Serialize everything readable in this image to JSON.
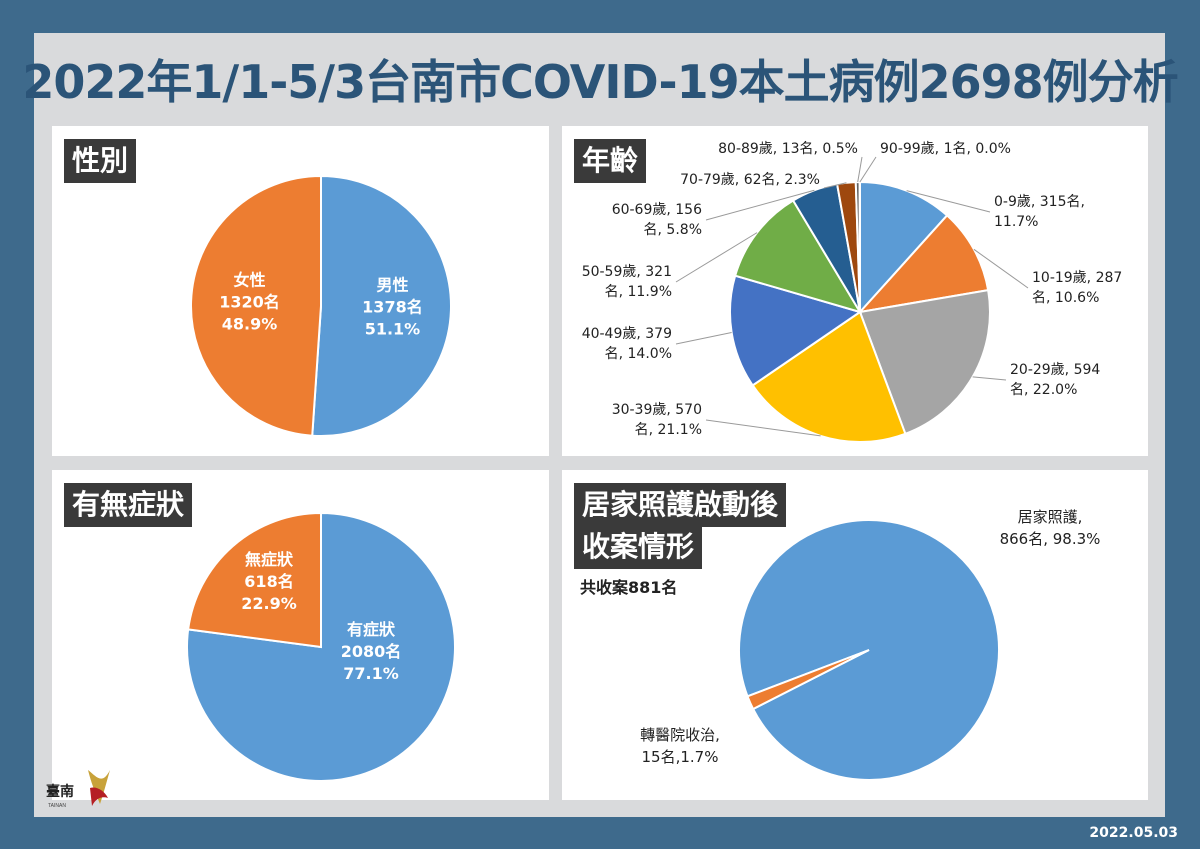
{
  "title": "2022年1/1-5/3台南市COVID-19本土病例2698例分析",
  "date": "2022.05.03",
  "logo": {
    "text": "臺南",
    "subtext": "TAINAN"
  },
  "colors": {
    "blue": "#5b9bd5",
    "orange": "#ed7d31",
    "gray": "#a5a5a5",
    "yellow": "#ffc000",
    "darkblue": "#4472c4",
    "green": "#70ad47",
    "navy": "#255e91",
    "brown": "#9e480e",
    "darkgray": "#636363"
  },
  "chart_data": [
    {
      "type": "pie",
      "title": "性別",
      "slices": [
        {
          "label": "男性",
          "value": 1378,
          "count_text": "1378名",
          "percent_text": "51.1%",
          "color": "#5b9bd5"
        },
        {
          "label": "女性",
          "value": 1320,
          "count_text": "1320名",
          "percent_text": "48.9%",
          "color": "#ed7d31"
        }
      ]
    },
    {
      "type": "pie",
      "title": "年齡",
      "slices": [
        {
          "label": "0-9歲, 315名,",
          "label2": "11.7%",
          "value": 315,
          "color": "#5b9bd5"
        },
        {
          "label": "10-19歲, 287",
          "label2": "名, 10.6%",
          "value": 287,
          "color": "#ed7d31"
        },
        {
          "label": "20-29歲, 594",
          "label2": "名, 22.0%",
          "value": 594,
          "color": "#a5a5a5"
        },
        {
          "label": "30-39歲, 570",
          "label2": "名, 21.1%",
          "value": 570,
          "color": "#ffc000"
        },
        {
          "label": "40-49歲, 379",
          "label2": "名, 14.0%",
          "value": 379,
          "color": "#4472c4"
        },
        {
          "label": "50-59歲, 321",
          "label2": "名, 11.9%",
          "value": 321,
          "color": "#70ad47"
        },
        {
          "label": "60-69歲, 156",
          "label2": "名, 5.8%",
          "value": 156,
          "color": "#255e91"
        },
        {
          "label": "70-79歲, 62名, 2.3%",
          "label2": "",
          "value": 62,
          "color": "#9e480e"
        },
        {
          "label": "80-89歲, 13名, 0.5%",
          "label2": "",
          "value": 13,
          "color": "#636363"
        },
        {
          "label": "90-99歲, 1名, 0.0%",
          "label2": "",
          "value": 1,
          "color": "#264478"
        }
      ]
    },
    {
      "type": "pie",
      "title": "有無症狀",
      "slices": [
        {
          "label": "有症狀",
          "value": 2080,
          "count_text": "2080名",
          "percent_text": "77.1%",
          "color": "#5b9bd5"
        },
        {
          "label": "無症狀",
          "value": 618,
          "count_text": "618名",
          "percent_text": "22.9%",
          "color": "#ed7d31"
        }
      ]
    },
    {
      "type": "pie",
      "title": "居家照護啟動後收案情形",
      "title_lines": [
        "居家照護啟動後",
        "收案情形"
      ],
      "note": "共收案881名",
      "slices": [
        {
          "label": "居家照護,",
          "label2": "866名, 98.3%",
          "value": 866,
          "color": "#5b9bd5"
        },
        {
          "label": "轉醫院收治,",
          "label2": "15名,1.7%",
          "value": 15,
          "color": "#ed7d31"
        }
      ]
    }
  ]
}
